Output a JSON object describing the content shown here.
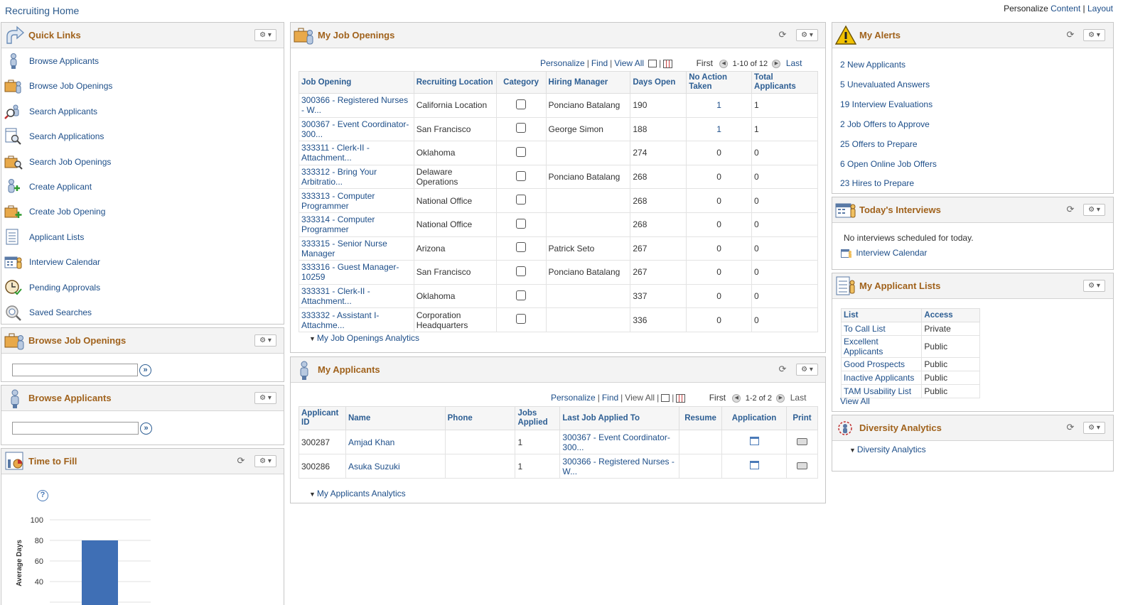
{
  "page": {
    "title": "Recruiting Home",
    "personalize_label": "Personalize",
    "content_link": "Content",
    "layout_link": "Layout"
  },
  "quick_links": {
    "title": "Quick Links",
    "items": [
      {
        "label": "Browse Applicants",
        "icon": "person-icon"
      },
      {
        "label": "Browse Job Openings",
        "icon": "briefcase-person-icon"
      },
      {
        "label": "Search Applicants",
        "icon": "search-people-icon"
      },
      {
        "label": "Search Applications",
        "icon": "search-document-icon"
      },
      {
        "label": "Search Job Openings",
        "icon": "search-briefcase-icon"
      },
      {
        "label": "Create Applicant",
        "icon": "add-person-icon"
      },
      {
        "label": "Create Job Opening",
        "icon": "add-briefcase-icon"
      },
      {
        "label": "Applicant Lists",
        "icon": "list-icon"
      },
      {
        "label": "Interview Calendar",
        "icon": "calendar-icon"
      },
      {
        "label": "Pending Approvals",
        "icon": "clock-check-icon"
      },
      {
        "label": "Saved Searches",
        "icon": "saved-search-icon"
      }
    ]
  },
  "browse_job_openings": {
    "title": "Browse Job Openings",
    "input_value": ""
  },
  "browse_applicants": {
    "title": "Browse Applicants",
    "input_value": ""
  },
  "time_to_fill": {
    "title": "Time to Fill",
    "help_icon": "help-icon"
  },
  "chart_data": {
    "type": "bar",
    "title": "",
    "xlabel": "",
    "ylabel": "Average Days",
    "yticks": [
      40,
      60,
      80,
      100
    ],
    "ylim": [
      20,
      100
    ],
    "categories": [
      ""
    ],
    "values": [
      80
    ],
    "color": "#3f6fb5"
  },
  "job_openings": {
    "title": "My Job Openings",
    "nav": {
      "personalize": "Personalize",
      "find": "Find",
      "view_all": "View All",
      "first": "First",
      "range": "1-10 of 12",
      "last": "Last"
    },
    "columns": [
      "Job Opening",
      "Recruiting Location",
      "Category",
      "Hiring Manager",
      "Days Open",
      "No Action Taken",
      "Total Applicants"
    ],
    "rows": [
      {
        "opening": "300366 - Registered Nurses - W...",
        "location": "California Location",
        "manager": "Ponciano Batalang",
        "days": "190",
        "no_action": "1",
        "total": "1"
      },
      {
        "opening": "300367 - Event Coordinator-300...",
        "location": "San Francisco",
        "manager": "George Simon",
        "days": "188",
        "no_action": "1",
        "total": "1"
      },
      {
        "opening": "333311 - Clerk-II - Attachment...",
        "location": "Oklahoma",
        "manager": "",
        "days": "274",
        "no_action": "0",
        "total": "0"
      },
      {
        "opening": "333312 - Bring Your Arbitratio...",
        "location": "Delaware Operations",
        "manager": "Ponciano Batalang",
        "days": "268",
        "no_action": "0",
        "total": "0"
      },
      {
        "opening": "333313 - Computer Programmer",
        "location": "National Office",
        "manager": "",
        "days": "268",
        "no_action": "0",
        "total": "0"
      },
      {
        "opening": "333314 - Computer Programmer",
        "location": "National Office",
        "manager": "",
        "days": "268",
        "no_action": "0",
        "total": "0"
      },
      {
        "opening": "333315 - Senior Nurse Manager",
        "location": "Arizona",
        "manager": "Patrick Seto",
        "days": "267",
        "no_action": "0",
        "total": "0"
      },
      {
        "opening": "333316 - Guest Manager-10259",
        "location": "San Francisco",
        "manager": "Ponciano Batalang",
        "days": "267",
        "no_action": "0",
        "total": "0"
      },
      {
        "opening": "333331 - Clerk-II - Attachment...",
        "location": "Oklahoma",
        "manager": "",
        "days": "337",
        "no_action": "0",
        "total": "0"
      },
      {
        "opening": "333332 - Assistant I-Attachme...",
        "location": "Corporation Headquarters",
        "manager": "",
        "days": "336",
        "no_action": "0",
        "total": "0"
      }
    ],
    "analytics_link": "My Job Openings Analytics"
  },
  "applicants": {
    "title": "My Applicants",
    "nav": {
      "personalize": "Personalize",
      "find": "Find",
      "view_all": "View All",
      "first": "First",
      "range": "1-2 of 2",
      "last": "Last"
    },
    "columns": [
      "Applicant ID",
      "Name",
      "Phone",
      "Jobs Applied",
      "Last Job Applied To",
      "Resume",
      "Application",
      "Print"
    ],
    "rows": [
      {
        "id": "300287",
        "name": "Amjad Khan",
        "phone": "",
        "jobs": "1",
        "last_job": "300367 - Event Coordinator-300..."
      },
      {
        "id": "300286",
        "name": "Asuka Suzuki",
        "phone": "",
        "jobs": "1",
        "last_job": "300366 - Registered Nurses - W..."
      }
    ],
    "analytics_link": "My Applicants Analytics"
  },
  "alerts": {
    "title": "My Alerts",
    "items": [
      "2 New Applicants",
      "5 Unevaluated Answers",
      "19 Interview Evaluations",
      "2 Job Offers to Approve",
      "25 Offers to Prepare",
      "6 Open Online Job Offers",
      "23 Hires to Prepare"
    ]
  },
  "interviews": {
    "title": "Today's Interviews",
    "message": "No interviews scheduled for today.",
    "calendar_link": "Interview Calendar"
  },
  "applicant_lists": {
    "title": "My Applicant Lists",
    "columns": [
      "List",
      "Access"
    ],
    "rows": [
      {
        "list": "To Call List",
        "access": "Private"
      },
      {
        "list": "Excellent Applicants",
        "access": "Public"
      },
      {
        "list": "Good Prospects",
        "access": "Public"
      },
      {
        "list": "Inactive Applicants",
        "access": "Public"
      },
      {
        "list": "TAM Usability List",
        "access": "Public"
      }
    ],
    "view_all": "View All"
  },
  "diversity": {
    "title": "Diversity Analytics",
    "link": "Diversity Analytics"
  }
}
